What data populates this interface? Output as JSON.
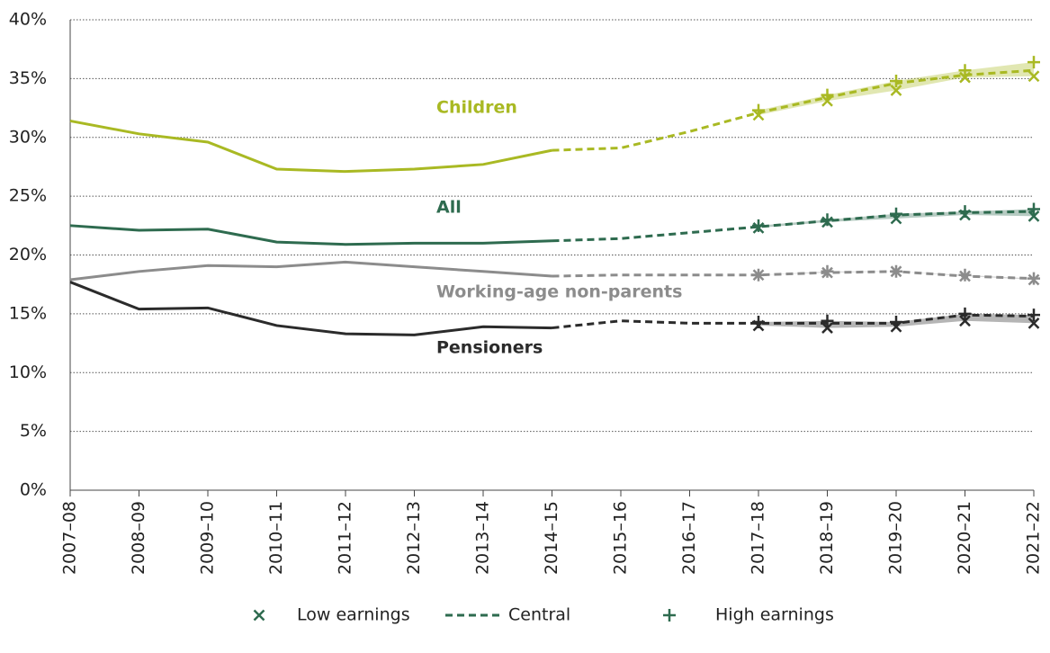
{
  "chart_data": {
    "type": "line",
    "categories": [
      "2007–08",
      "2008–09",
      "2009–10",
      "2010–11",
      "2011–12",
      "2012–13",
      "2013–14",
      "2014–15",
      "2015–16",
      "2016–17",
      "2017–18",
      "2018–19",
      "2019–20",
      "2020–21",
      "2021–22"
    ],
    "projection_from": "2014–15",
    "ylim": [
      0,
      40
    ],
    "yticks": [
      {
        "value": 0,
        "label": "0%"
      },
      {
        "value": 5,
        "label": "5%"
      },
      {
        "value": 10,
        "label": "10%"
      },
      {
        "value": 15,
        "label": "15%"
      },
      {
        "value": 20,
        "label": "20%"
      },
      {
        "value": 25,
        "label": "25%"
      },
      {
        "value": 30,
        "label": "30%"
      },
      {
        "value": 35,
        "label": "35%"
      },
      {
        "value": 40,
        "label": "40%"
      }
    ],
    "grid": true,
    "legend": {
      "low": "Low earnings",
      "central": "Central",
      "high": "High earnings",
      "color": "#2e6b4f"
    },
    "series": [
      {
        "name": "Children",
        "color": "#a9b923",
        "values": [
          31.4,
          30.3,
          29.6,
          27.3,
          27.1,
          27.3,
          27.7,
          28.9,
          29.1,
          30.5,
          32.1,
          33.4,
          34.6,
          35.3,
          35.7
        ],
        "low": [
          null,
          null,
          null,
          null,
          null,
          null,
          null,
          null,
          null,
          null,
          31.9,
          33.1,
          34.0,
          35.1,
          35.2
        ],
        "high": [
          null,
          null,
          null,
          null,
          null,
          null,
          null,
          null,
          null,
          null,
          32.3,
          33.6,
          34.8,
          35.7,
          36.4
        ]
      },
      {
        "name": "All",
        "color": "#2e6b4f",
        "values": [
          22.5,
          22.1,
          22.2,
          21.1,
          20.9,
          21.0,
          21.0,
          21.2,
          21.4,
          21.9,
          22.4,
          22.9,
          23.4,
          23.6,
          23.7
        ],
        "low": [
          null,
          null,
          null,
          null,
          null,
          null,
          null,
          null,
          null,
          null,
          22.3,
          22.8,
          23.1,
          23.4,
          23.3
        ],
        "high": [
          null,
          null,
          null,
          null,
          null,
          null,
          null,
          null,
          null,
          null,
          22.5,
          23.0,
          23.5,
          23.7,
          23.9
        ]
      },
      {
        "name": "Working-age non-parents",
        "color": "#8c8c8c",
        "values": [
          17.9,
          18.6,
          19.1,
          19.0,
          19.4,
          19.0,
          18.6,
          18.2,
          18.3,
          18.3,
          18.3,
          18.5,
          18.6,
          18.2,
          18.0
        ],
        "low": [
          null,
          null,
          null,
          null,
          null,
          null,
          null,
          null,
          null,
          null,
          18.3,
          18.5,
          18.6,
          18.2,
          17.9
        ],
        "high": [
          null,
          null,
          null,
          null,
          null,
          null,
          null,
          null,
          null,
          null,
          18.3,
          18.6,
          18.6,
          18.3,
          18.0
        ]
      },
      {
        "name": "Pensioners",
        "color": "#2b2b2b",
        "values": [
          17.7,
          15.4,
          15.5,
          14.0,
          13.3,
          13.2,
          13.9,
          13.8,
          14.4,
          14.2,
          14.2,
          14.2,
          14.2,
          14.9,
          14.8
        ],
        "low": [
          null,
          null,
          null,
          null,
          null,
          null,
          null,
          null,
          null,
          null,
          14.0,
          13.8,
          13.9,
          14.4,
          14.2
        ],
        "high": [
          null,
          null,
          null,
          null,
          null,
          null,
          null,
          null,
          null,
          null,
          14.3,
          14.4,
          14.3,
          15.0,
          14.9
        ]
      }
    ]
  }
}
